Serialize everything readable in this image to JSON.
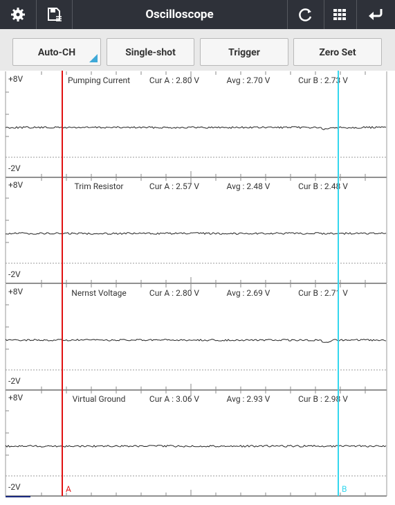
{
  "header": {
    "title": "Oscilloscope"
  },
  "toolbar": {
    "buttons": [
      "Auto-CH",
      "Single-shot",
      "Trigger",
      "Zero Set"
    ]
  },
  "channels": [
    {
      "name": "Pumping Current",
      "y_max": "+8V",
      "y_min": "-2V",
      "cur_a": "Cur A : 2.80 V",
      "avg": "Avg : 2.70 V",
      "cur_b": "Cur B : 2.73 V"
    },
    {
      "name": "Trim Resistor",
      "y_max": "+8V",
      "y_min": "-2V",
      "cur_a": "Cur A : 2.57 V",
      "avg": "Avg : 2.48 V",
      "cur_b": "Cur B : 2.48 V"
    },
    {
      "name": "Nernst Voltage",
      "y_max": "+8V",
      "y_min": "-2V",
      "cur_a": "Cur A : 2.80 V",
      "avg": "Avg : 2.69 V",
      "cur_b": "Cur B : 2.71 V"
    },
    {
      "name": "Virtual Ground",
      "y_max": "+8V",
      "y_min": "-2V",
      "cur_a": "Cur A : 3.06 V",
      "avg": "Avg : 2.93 V",
      "cur_b": "Cur B : 2.98 V"
    }
  ],
  "cursors": {
    "a": "A",
    "b": "B"
  }
}
